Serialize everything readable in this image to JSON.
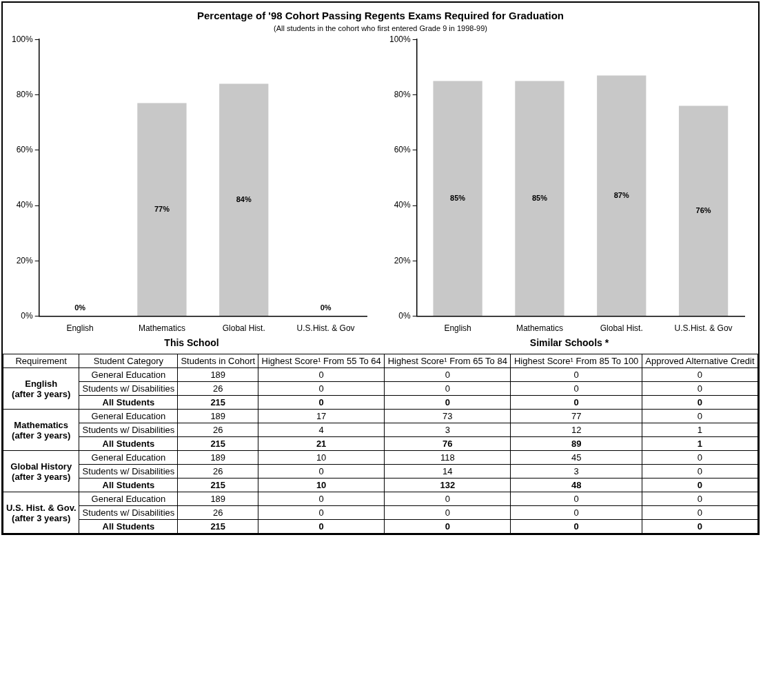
{
  "chart_data": [
    {
      "type": "bar",
      "title": "Percentage of '98 Cohort Passing Regents Exams Required for Graduation",
      "subtitle": "(All students in the cohort who first entered Grade 9 in 1998-99)",
      "xlabel": "This School",
      "categories": [
        "English",
        "Mathematics",
        "Global Hist.",
        "U.S.Hist. & Gov"
      ],
      "values": [
        0,
        77,
        84,
        0
      ],
      "color": "#c8c8c8",
      "value_labels": [
        "0%",
        "77%",
        "84%",
        "0%"
      ],
      "ylim": [
        0,
        100
      ],
      "yticks": [
        {
          "value": 0,
          "label": "0%"
        },
        {
          "value": 20,
          "label": "20%"
        },
        {
          "value": 40,
          "label": "40%"
        },
        {
          "value": 60,
          "label": "60%"
        },
        {
          "value": 80,
          "label": "80%"
        },
        {
          "value": 100,
          "label": "100%"
        }
      ],
      "grid": false,
      "legend": false
    },
    {
      "type": "bar",
      "xlabel": "Similar Schools *",
      "categories": [
        "English",
        "Mathematics",
        "Global Hist.",
        "U.S.Hist. & Gov"
      ],
      "values": [
        85,
        85,
        87,
        76
      ],
      "color": "#c8c8c8",
      "value_labels": [
        "85%",
        "85%",
        "87%",
        "76%"
      ],
      "ylim": [
        0,
        100
      ],
      "yticks": [
        {
          "value": 0,
          "label": "0%"
        },
        {
          "value": 20,
          "label": "20%"
        },
        {
          "value": 40,
          "label": "40%"
        },
        {
          "value": 60,
          "label": "60%"
        },
        {
          "value": 80,
          "label": "80%"
        },
        {
          "value": 100,
          "label": "100%"
        }
      ],
      "grid": false,
      "legend": false
    },
    {
      "type": "other",
      "categories": [
        "Requirement",
        "Student Category",
        "Students in Cohort",
        "Highest Score¹ From 55 To 64",
        "Highest Score¹ From 65 To 84",
        "Highest Score¹ From 85 To 100",
        "Approved Alternative Credit"
      ],
      "cells": [
        [
          "English\n(after 3 years)",
          "General Education",
          "189",
          "0",
          "0",
          "0",
          "0"
        ],
        [
          null,
          "Students w/ Disabilities",
          "26",
          "0",
          "0",
          "0",
          "0"
        ],
        [
          null,
          "All Students",
          "215",
          "0",
          "0",
          "0",
          "0"
        ],
        [
          "Mathematics\n(after 3 years)",
          "General Education",
          "189",
          "17",
          "73",
          "77",
          "0"
        ],
        [
          null,
          "Students w/ Disabilities",
          "26",
          "4",
          "3",
          "12",
          "1"
        ],
        [
          null,
          "All Students",
          "215",
          "21",
          "76",
          "89",
          "1"
        ],
        [
          "Global History\n(after 3 years)",
          "General Education",
          "189",
          "10",
          "118",
          "45",
          "0"
        ],
        [
          null,
          "Students w/ Disabilities",
          "26",
          "0",
          "14",
          "3",
          "0"
        ],
        [
          null,
          "All Students",
          "215",
          "10",
          "132",
          "48",
          "0"
        ],
        [
          "U.S. Hist. & Gov.\n(after 3 years)",
          "General Education",
          "189",
          "0",
          "0",
          "0",
          "0"
        ],
        [
          null,
          "Students w/ Disabilities",
          "26",
          "0",
          "0",
          "0",
          "0"
        ],
        [
          null,
          "All Students",
          "215",
          "0",
          "0",
          "0",
          "0"
        ]
      ]
    }
  ]
}
